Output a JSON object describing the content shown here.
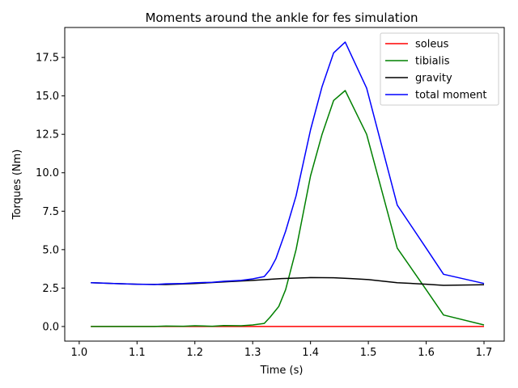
{
  "chart_data": {
    "type": "line",
    "title": "Moments around the ankle for fes simulation",
    "xlabel": "Time (s)",
    "ylabel": "Torques (Nm)",
    "xlim": [
      0.975,
      1.735
    ],
    "ylim": [
      -0.95,
      19.45
    ],
    "xticks": [
      1.0,
      1.1,
      1.2,
      1.3,
      1.4,
      1.5,
      1.6,
      1.7
    ],
    "xtick_labels": [
      "1.0",
      "1.1",
      "1.2",
      "1.3",
      "1.4",
      "1.5",
      "1.6",
      "1.7"
    ],
    "yticks": [
      0.0,
      2.5,
      5.0,
      7.5,
      10.0,
      12.5,
      15.0,
      17.5
    ],
    "ytick_labels": [
      "0.0",
      "2.5",
      "5.0",
      "7.5",
      "10.0",
      "12.5",
      "15.0",
      "17.5"
    ],
    "grid": false,
    "legend_position": "top-right",
    "series": [
      {
        "name": "soleus",
        "color": "#ff0000",
        "x": [
          1.02,
          1.7
        ],
        "y": [
          0.0,
          0.0
        ]
      },
      {
        "name": "tibialis",
        "color": "#008000",
        "x": [
          1.02,
          1.06,
          1.1,
          1.13,
          1.15,
          1.18,
          1.2,
          1.23,
          1.25,
          1.28,
          1.3,
          1.32,
          1.33,
          1.345,
          1.357,
          1.375,
          1.4,
          1.42,
          1.44,
          1.46,
          1.497,
          1.55,
          1.6,
          1.63,
          1.7
        ],
        "y": [
          0.0,
          0.0,
          0.0,
          0.0,
          0.03,
          0.02,
          0.05,
          0.02,
          0.06,
          0.05,
          0.1,
          0.2,
          0.6,
          1.3,
          2.4,
          5.0,
          9.8,
          12.5,
          14.7,
          15.35,
          12.5,
          5.1,
          2.4,
          0.75,
          0.1
        ]
      },
      {
        "name": "gravity",
        "color": "#000000",
        "x": [
          1.02,
          1.06,
          1.1,
          1.15,
          1.2,
          1.25,
          1.3,
          1.35,
          1.4,
          1.44,
          1.47,
          1.5,
          1.55,
          1.6,
          1.63,
          1.7
        ],
        "y": [
          2.85,
          2.8,
          2.75,
          2.73,
          2.8,
          2.9,
          3.0,
          3.12,
          3.18,
          3.17,
          3.12,
          3.05,
          2.85,
          2.75,
          2.68,
          2.72
        ]
      },
      {
        "name": "total moment",
        "color": "#0000ff",
        "x": [
          1.02,
          1.06,
          1.1,
          1.13,
          1.15,
          1.18,
          1.2,
          1.23,
          1.25,
          1.28,
          1.3,
          1.32,
          1.33,
          1.34,
          1.357,
          1.375,
          1.4,
          1.42,
          1.44,
          1.46,
          1.497,
          1.55,
          1.6,
          1.63,
          1.7
        ],
        "y": [
          2.85,
          2.8,
          2.75,
          2.73,
          2.78,
          2.8,
          2.84,
          2.88,
          2.94,
          3.0,
          3.1,
          3.25,
          3.7,
          4.4,
          6.2,
          8.5,
          12.8,
          15.6,
          17.8,
          18.5,
          15.5,
          7.9,
          5.1,
          3.4,
          2.8
        ]
      }
    ]
  }
}
